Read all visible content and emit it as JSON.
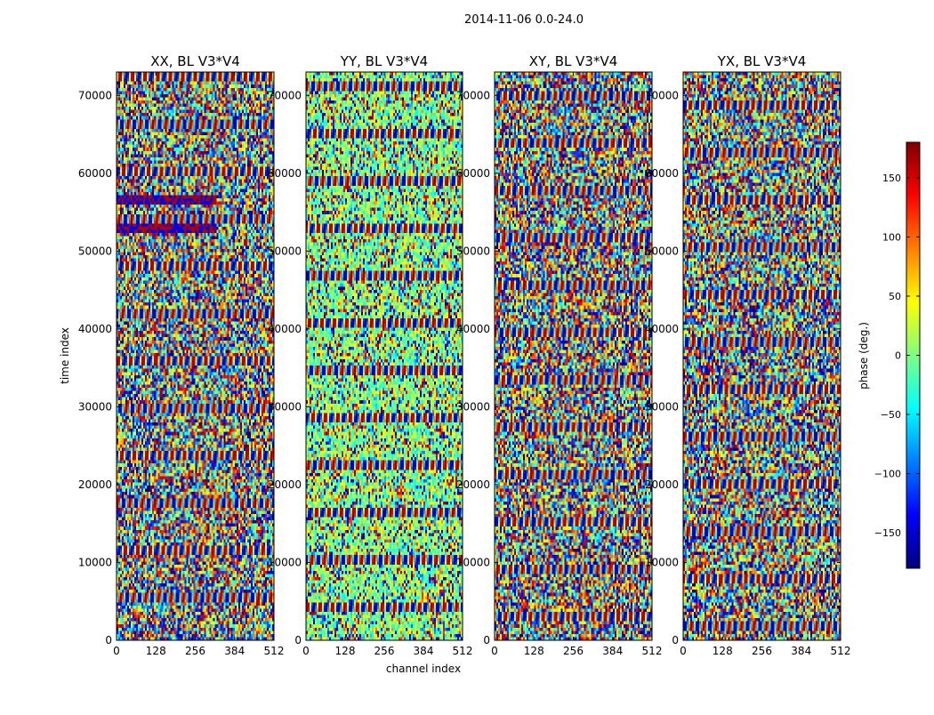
{
  "chart_data": {
    "type": "heatmap",
    "title": "2014-11-06 0.0-24.0",
    "xlabel": "channel index",
    "ylabel": "time index",
    "xlim": [
      0,
      512
    ],
    "ylim": [
      0,
      73000
    ],
    "x_ticks": [
      0,
      128,
      256,
      384,
      512
    ],
    "y_ticks": [
      0,
      10000,
      20000,
      30000,
      40000,
      50000,
      60000,
      70000
    ],
    "panels": [
      {
        "name": "XX, BL V3*V4",
        "title": "XX, BL V3*V4"
      },
      {
        "name": "YY, BL V3*V4",
        "title": "YY, BL V3*V4"
      },
      {
        "name": "XY, BL V3*V4",
        "title": "XY, BL V3*V4"
      },
      {
        "name": "YX, BL V3*V4",
        "title": "YX, BL V3*V4"
      }
    ],
    "colorbar": {
      "label": "phase (deg.)",
      "colormap": "jet",
      "range": [
        -180,
        180
      ],
      "ticks": [
        150,
        100,
        50,
        0,
        -50,
        -100,
        -150
      ],
      "tick_labels": [
        "150",
        "100",
        "50",
        "0",
        "−50",
        "−100",
        "−150"
      ]
    },
    "colors": {
      "jet": [
        "#00007f",
        "#0000ff",
        "#007fff",
        "#00ffff",
        "#7fff7f",
        "#ffff00",
        "#ff7f00",
        "#ff0000",
        "#7f0000"
      ]
    }
  }
}
